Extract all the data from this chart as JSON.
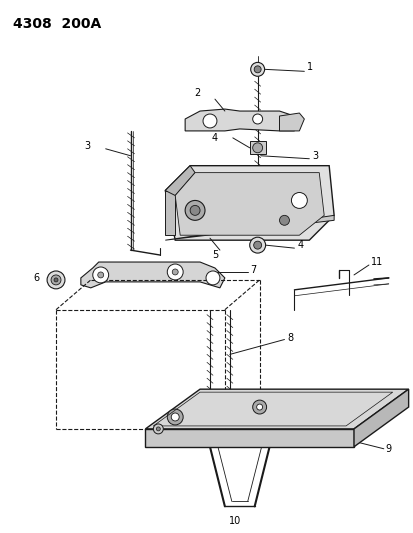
{
  "title": "4308  200A",
  "background_color": "#ffffff",
  "line_color": "#1a1a1a",
  "fig_width": 4.14,
  "fig_height": 5.33,
  "dpi": 100
}
